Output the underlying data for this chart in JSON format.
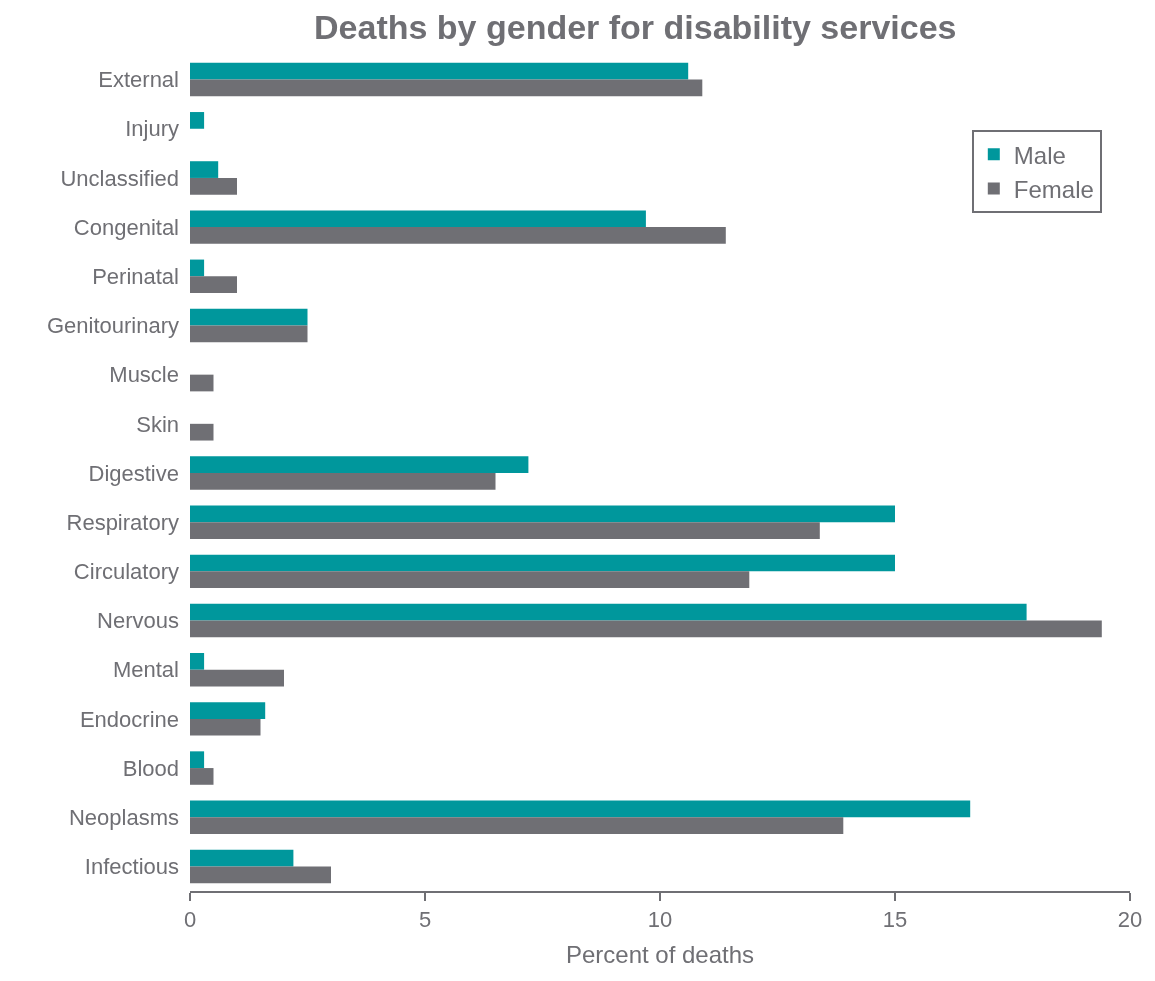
{
  "chart_data": {
    "type": "bar",
    "orientation": "horizontal",
    "title": "Deaths by gender for disability services",
    "xlabel": "Percent of deaths",
    "categories": [
      "External",
      "Injury",
      "Unclassified",
      "Congenital",
      "Perinatal",
      "Genitourinary",
      "Muscle",
      "Skin",
      "Digestive",
      "Respiratory",
      "Circulatory",
      "Nervous",
      "Mental",
      "Endocrine",
      "Blood",
      "Neoplasms",
      "Infectious"
    ],
    "series": [
      {
        "name": "Male",
        "color": "#00979c",
        "values": [
          10.6,
          0.3,
          0.6,
          9.7,
          0.3,
          2.5,
          0,
          0,
          7.2,
          15.0,
          15.0,
          17.8,
          0.3,
          1.6,
          0.3,
          16.6,
          2.2
        ]
      },
      {
        "name": "Female",
        "color": "#6f6f74",
        "values": [
          10.9,
          0,
          1.0,
          11.4,
          1.0,
          2.5,
          0.5,
          0.5,
          6.5,
          13.4,
          11.9,
          19.4,
          2.0,
          1.5,
          0.5,
          13.9,
          3.0
        ]
      }
    ],
    "xlim": [
      0,
      20
    ],
    "xticks": [
      0,
      5,
      10,
      15,
      20
    ],
    "legend": "top right"
  }
}
